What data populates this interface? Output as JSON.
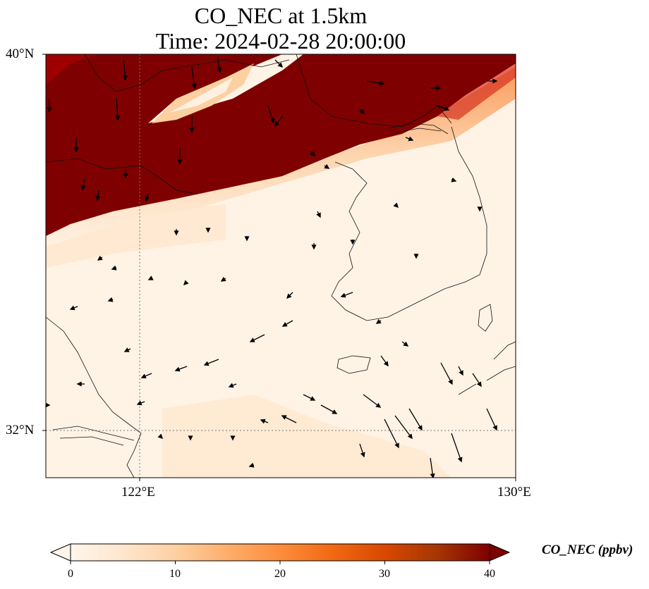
{
  "title": {
    "line1": "CO_NEC at 1.5km",
    "line2": "Time: 2024-02-28 20:00:00"
  },
  "axes": {
    "lat_ticks": [
      {
        "value": 40,
        "label": "40°N"
      },
      {
        "value": 32,
        "label": "32°N"
      }
    ],
    "lon_ticks": [
      {
        "value": 122,
        "label": "122°E"
      },
      {
        "value": 130,
        "label": "130°E"
      }
    ],
    "lon_range": [
      120,
      130
    ],
    "lat_range": [
      31,
      40
    ]
  },
  "colorbar": {
    "label": "CO_NEC (ppbv)",
    "ticks": [
      "0",
      "10",
      "20",
      "30",
      "40"
    ],
    "min": 0,
    "max": 40,
    "extend": "both",
    "colormap": [
      "#fff5eb",
      "#fee6ce",
      "#fdd0a2",
      "#fdae6b",
      "#fd8d3c",
      "#f16913",
      "#d94801",
      "#a63603",
      "#7f0000"
    ]
  },
  "colors": {
    "high": "#7f0000",
    "low": "#fff5eb"
  }
}
